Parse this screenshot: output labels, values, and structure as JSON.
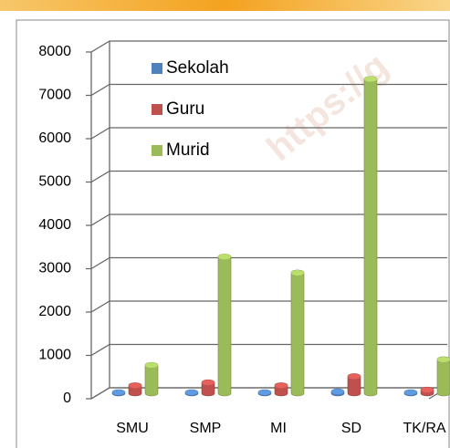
{
  "watermark": "https://g",
  "chart_data": {
    "type": "bar",
    "categories": [
      "SMU",
      "SMP",
      "MI",
      "SD",
      "TK/RA"
    ],
    "series": [
      {
        "name": "Sekolah",
        "color": "#4f81bd",
        "values": [
          20,
          20,
          20,
          40,
          20
        ]
      },
      {
        "name": "Guru",
        "color": "#c0504d",
        "values": [
          180,
          250,
          180,
          390,
          80
        ]
      },
      {
        "name": "Murid",
        "color": "#9bbb59",
        "values": [
          650,
          3150,
          2780,
          7250,
          780
        ]
      }
    ],
    "ylim": [
      0,
      8000
    ],
    "yticks": [
      0,
      1000,
      2000,
      3000,
      4000,
      5000,
      6000,
      7000,
      8000
    ],
    "grid": true,
    "legend": "top-left"
  }
}
